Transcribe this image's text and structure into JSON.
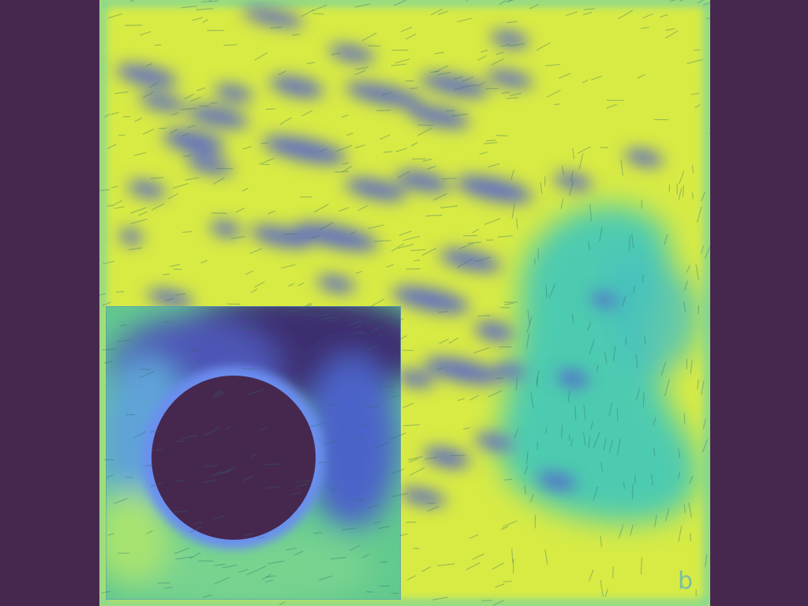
{
  "figure": {
    "panel_label": "b",
    "colormap": [
      "#46284f",
      "#4b3f9c",
      "#6a83e6",
      "#34b3c9",
      "#56d99a",
      "#9fe866",
      "#e3ee3f"
    ],
    "background_color": "#46284f"
  }
}
